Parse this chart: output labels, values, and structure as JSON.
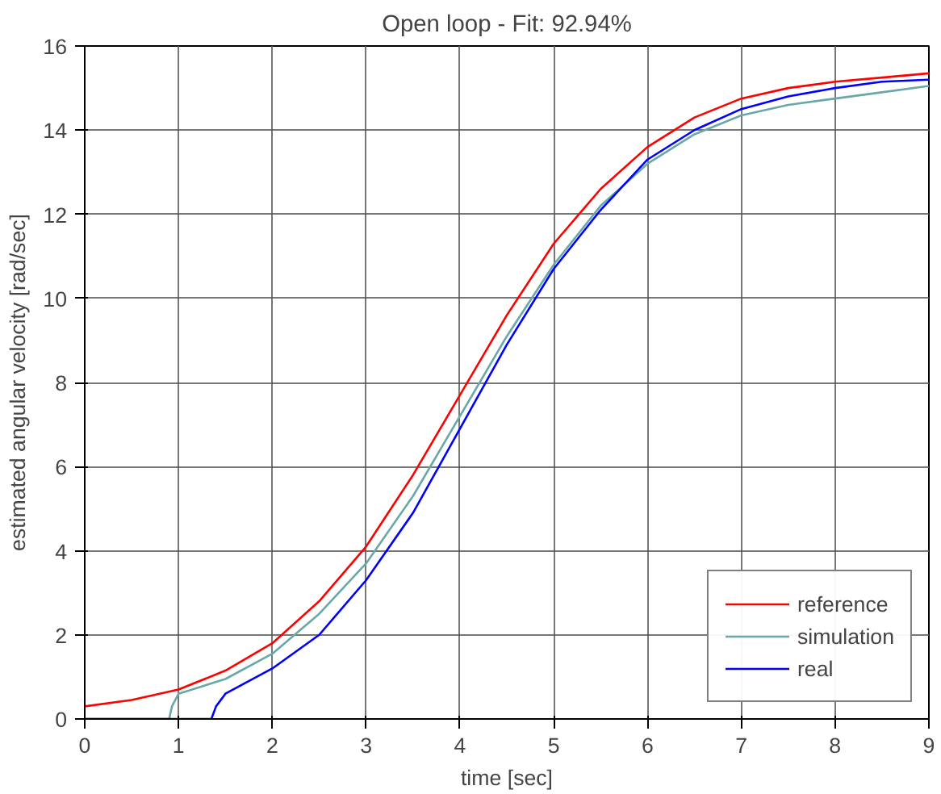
{
  "chart_data": {
    "type": "line",
    "title": "Open loop - Fit: 92.94%",
    "xlabel": "time [sec]",
    "ylabel": "estimated angular velocity [rad/sec]",
    "xlim": [
      0,
      9
    ],
    "ylim": [
      0,
      16
    ],
    "xticks": [
      0,
      1,
      2,
      3,
      4,
      5,
      6,
      7,
      8,
      9
    ],
    "yticks": [
      0,
      2,
      4,
      6,
      8,
      10,
      12,
      14,
      16
    ],
    "grid": true,
    "legend": "bottom right",
    "series": [
      {
        "name": "reference",
        "color": "#ff0000",
        "x": [
          0,
          0.5,
          1,
          1.5,
          2,
          2.5,
          3,
          3.5,
          4,
          4.5,
          5,
          5.5,
          6,
          6.5,
          7,
          7.5,
          8,
          8.5,
          9
        ],
        "values": [
          0.3,
          0.45,
          0.7,
          1.15,
          1.8,
          2.8,
          4.1,
          5.8,
          7.7,
          9.6,
          11.3,
          12.6,
          13.6,
          14.3,
          14.75,
          15.0,
          15.15,
          15.25,
          15.35
        ]
      },
      {
        "name": "simulation",
        "color": "#6aa8a8",
        "x": [
          0,
          0.9,
          0.93,
          1,
          1.5,
          2,
          2.5,
          3,
          3.5,
          4,
          4.5,
          5,
          5.5,
          6,
          6.5,
          7,
          7.5,
          8,
          8.5,
          9
        ],
        "values": [
          0,
          0,
          0.3,
          0.6,
          0.95,
          1.55,
          2.5,
          3.7,
          5.3,
          7.2,
          9.1,
          10.8,
          12.2,
          13.2,
          13.9,
          14.35,
          14.6,
          14.75,
          14.9,
          15.05
        ]
      },
      {
        "name": "real",
        "color": "#0000ff",
        "x": [
          0,
          1.35,
          1.4,
          1.5,
          2,
          2.5,
          3,
          3.5,
          4,
          4.5,
          5,
          5.5,
          6,
          6.5,
          7,
          7.5,
          8,
          8.5,
          9
        ],
        "values": [
          0,
          0,
          0.3,
          0.6,
          1.2,
          2.0,
          3.3,
          4.9,
          6.9,
          8.9,
          10.7,
          12.1,
          13.3,
          14.0,
          14.5,
          14.8,
          15.0,
          15.15,
          15.2
        ]
      }
    ]
  }
}
